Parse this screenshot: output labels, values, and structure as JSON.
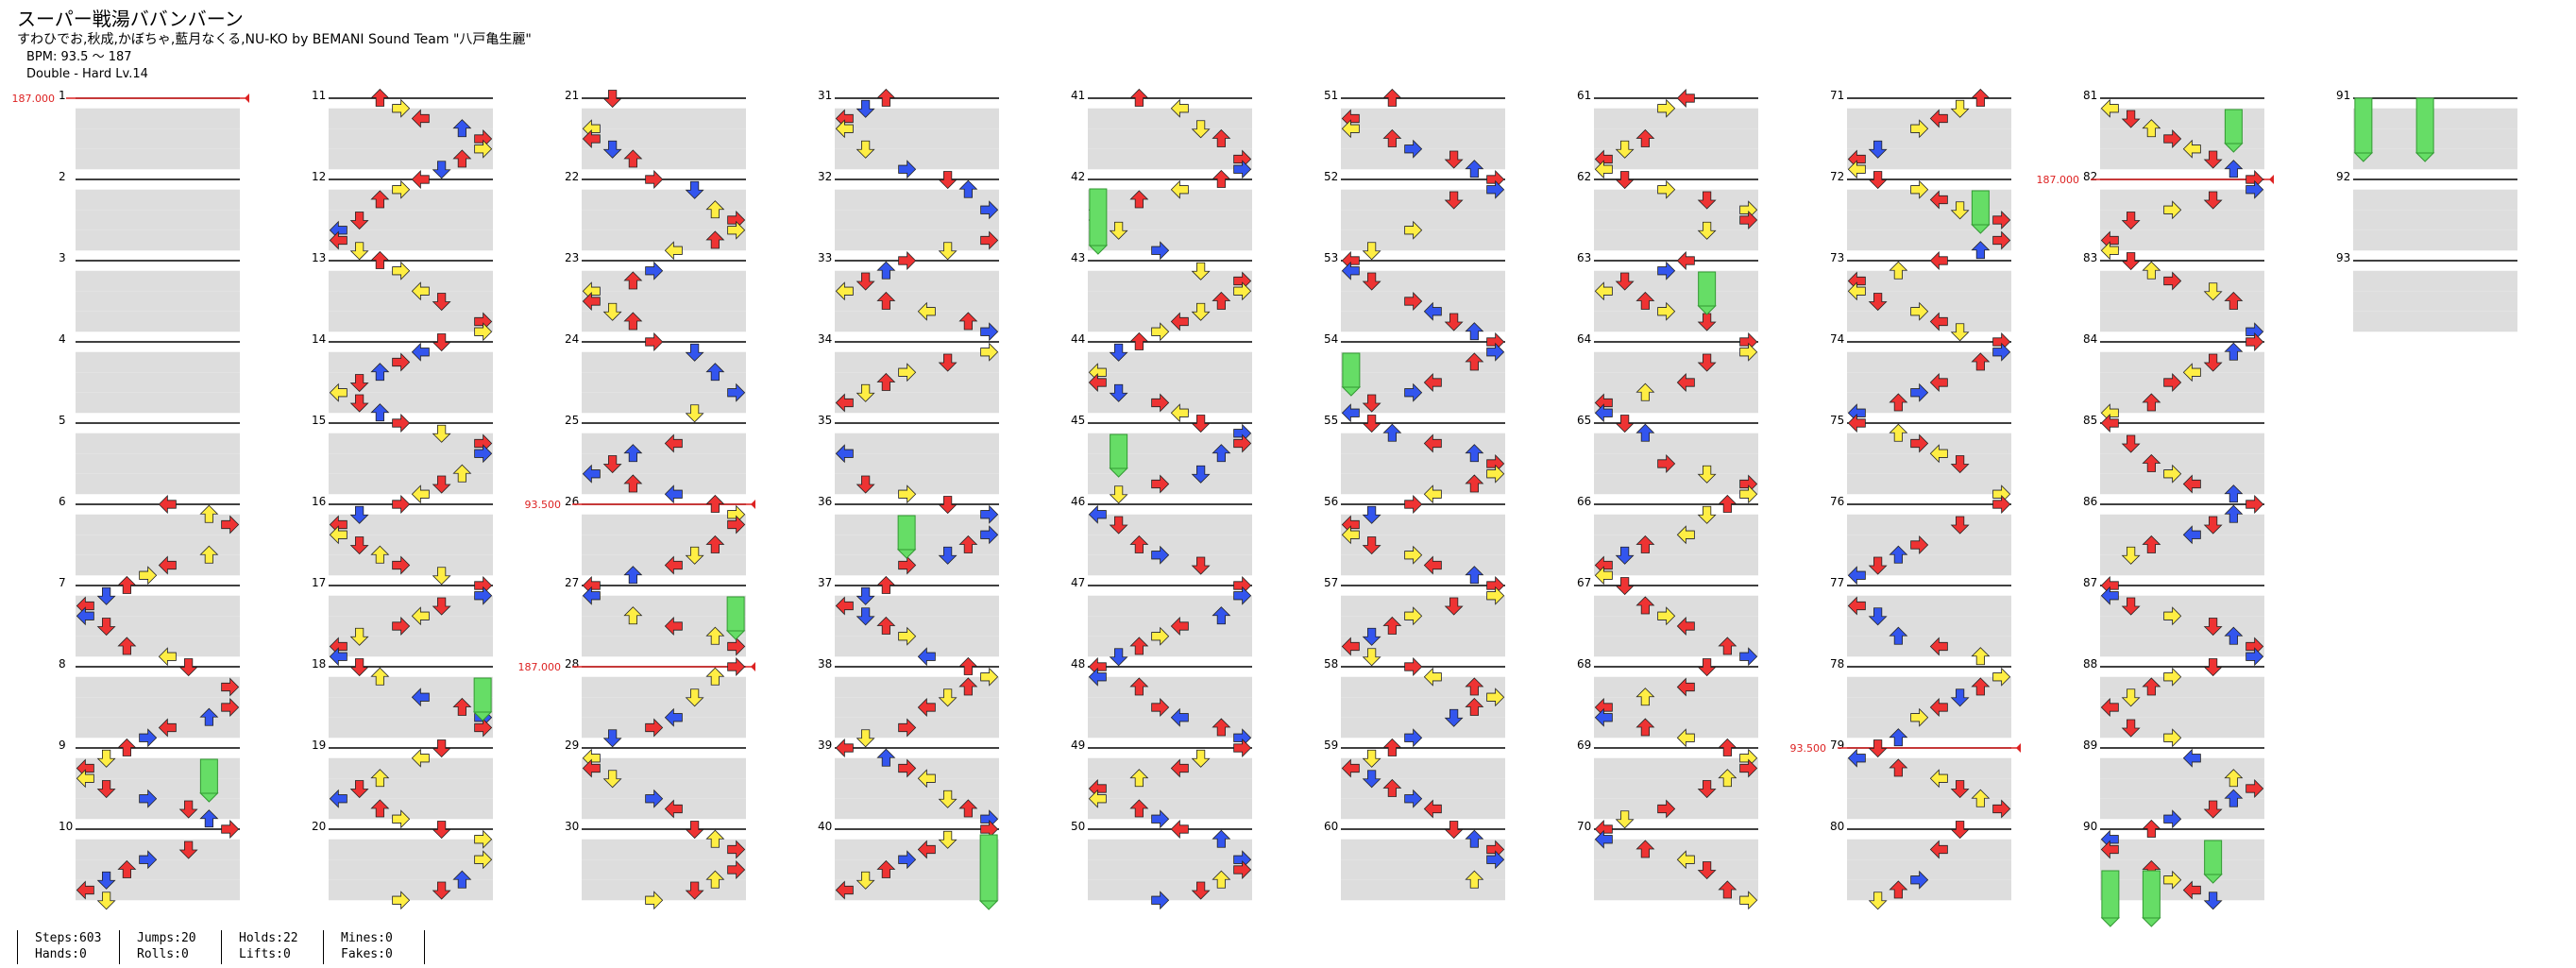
{
  "song": {
    "title": "スーパー戦湯ババンバーン",
    "artist": "すわひでお,秋成,かぼちゃ,藍月なくる,NU-KO by BEMANI Sound Team \"八戸亀生麗\"",
    "bpm": "BPM: 93.5 ～ 187",
    "difficulty": "Double - Hard Lv.14"
  },
  "colors": {
    "red": "#ee3333",
    "blue": "#3355ee",
    "yellow": "#ffee44",
    "green": "#66dd66"
  },
  "bpm_changes": [
    {
      "measure": 1,
      "label": "187.000"
    },
    {
      "measure": 26,
      "label": "93.500"
    },
    {
      "measure": 28,
      "label": "187.000"
    },
    {
      "measure": 79,
      "label": "93.500"
    },
    {
      "measure": 82,
      "label": "187.000"
    }
  ],
  "measures": [
    1,
    2,
    3,
    4,
    5,
    6,
    7,
    8,
    9,
    10,
    11,
    12,
    13,
    14,
    15,
    16,
    17,
    18,
    19,
    20,
    21,
    22,
    23,
    24,
    25,
    26,
    27,
    28,
    29,
    30,
    31,
    32,
    33,
    34,
    35,
    36,
    37,
    38,
    39,
    40,
    41,
    42,
    43,
    44,
    45,
    46,
    47,
    48,
    49,
    50,
    51,
    52,
    53,
    54,
    55,
    56,
    57,
    58,
    59,
    60,
    61,
    62,
    63,
    64,
    65,
    66,
    67,
    68,
    69,
    70,
    71,
    72,
    73,
    74,
    75,
    76,
    77,
    78,
    79,
    80,
    81,
    82,
    83,
    84,
    85,
    86,
    87,
    88,
    89,
    90,
    91,
    92,
    93
  ],
  "stats": [
    {
      "a": "Steps:603",
      "b": "Hands:0"
    },
    {
      "a": "Jumps:20",
      "b": "Rolls:0"
    },
    {
      "a": "Holds:22",
      "b": "Lifts:0"
    },
    {
      "a": "Mines:0",
      "b": "Fakes:0"
    }
  ]
}
